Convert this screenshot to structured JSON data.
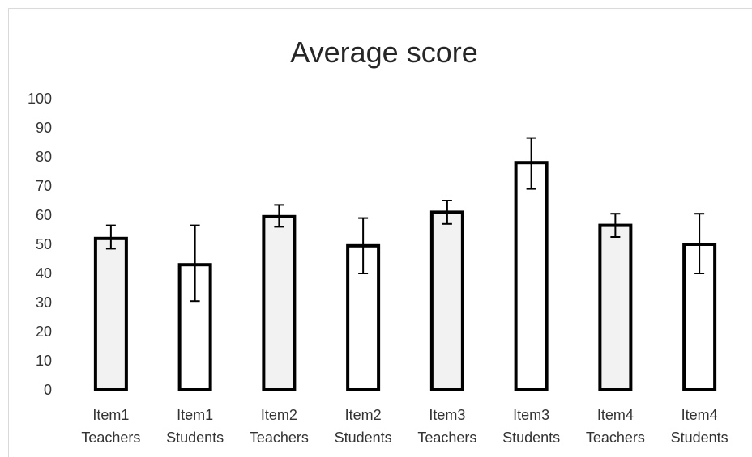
{
  "chart_data": {
    "type": "bar",
    "title": "Average score",
    "xlabel": "",
    "ylabel": "",
    "ylim": [
      0,
      100
    ],
    "yticks": [
      "0",
      "10",
      "20",
      "30",
      "40",
      "50",
      "60",
      "70",
      "80",
      "90",
      "100"
    ],
    "grid": false,
    "categories": [
      [
        "Item1",
        "Teachers"
      ],
      [
        "Item1",
        "Students"
      ],
      [
        "Item2",
        "Teachers"
      ],
      [
        "Item2",
        "Students"
      ],
      [
        "Item3",
        "Teachers"
      ],
      [
        "Item3",
        "Students"
      ],
      [
        "Item4",
        "Teachers"
      ],
      [
        "Item4",
        "Students"
      ]
    ],
    "values": [
      52,
      43,
      59.5,
      49.5,
      61,
      78,
      56.5,
      50
    ],
    "error_bars": [
      {
        "low": 48.5,
        "high": 56.5
      },
      {
        "low": 30.5,
        "high": 56.5
      },
      {
        "low": 56,
        "high": 63.5
      },
      {
        "low": 40,
        "high": 59
      },
      {
        "low": 57,
        "high": 65
      },
      {
        "low": 69,
        "high": 86.5
      },
      {
        "low": 52.5,
        "high": 60.5
      },
      {
        "low": 40,
        "high": 60.5
      }
    ],
    "colors": {
      "teachers_fill": "#f2f2f2",
      "students_fill": "#ffffff",
      "bar_border": "#000000",
      "error_bar": "#000000"
    }
  }
}
